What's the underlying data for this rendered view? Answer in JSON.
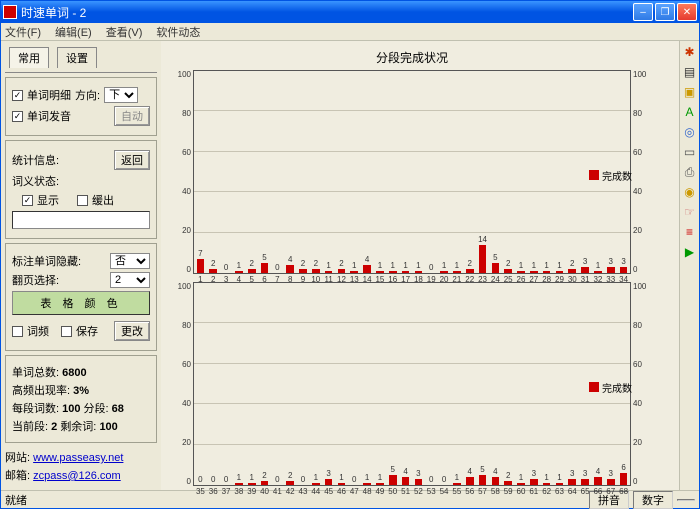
{
  "window": {
    "title": "时速单词  -  2"
  },
  "menu": {
    "file": "文件(F)",
    "edit": "编辑(E)",
    "view": "查看(V)",
    "soft": "软件动态"
  },
  "tabs": {
    "common": "常用",
    "settings": "设置"
  },
  "panel": {
    "wordDetail": "单词明细",
    "direction": "方向:",
    "directionVal": "下",
    "wordSound": "单词发音",
    "autoBtn": "自动",
    "statInfo": "统计信息:",
    "backBtn": "返回",
    "meaningState": "词义状态:",
    "show": "显示",
    "delay": "缓出",
    "markHide": "标注单词隐藏:",
    "markHideVal": "否",
    "pageSel": "翻页选择:",
    "pageSelVal": "2",
    "tableColorBtn": "表 格 颜 色",
    "wordFreq": "词频",
    "save": "保存",
    "changeBtn": "更改",
    "totalLabel": "单词总数:",
    "totalVal": "6800",
    "freqLabel": "高频出现率:",
    "freqVal": "3%",
    "perSegLabel": "每段词数:",
    "perSegVal": "100",
    "segLabel": "分段:",
    "segVal": "68",
    "curSegLabel": "当前段:",
    "curSegVal": "2",
    "remainLabel": "剩余词:",
    "remainVal": "100",
    "siteLabel": "网站:",
    "siteVal": "www.passeasy.net",
    "mailLabel": "邮箱:",
    "mailVal": "zcpass@126.com"
  },
  "charts": {
    "title": "分段完成状况",
    "legend": "完成数",
    "ymax": 100,
    "ystep": 20,
    "bar_color": "#cc0000",
    "grid_color": "#c8c4b4",
    "bg": "#f0ede0",
    "top": {
      "xstart": 1,
      "values": [
        7,
        2,
        0,
        1,
        2,
        5,
        0,
        4,
        2,
        2,
        1,
        2,
        1,
        4,
        1,
        1,
        1,
        1,
        0,
        1,
        1,
        2,
        14,
        5,
        2,
        1,
        1,
        1,
        1,
        2,
        3,
        1,
        3,
        3
      ]
    },
    "bottom": {
      "xstart": 35,
      "values": [
        0,
        0,
        0,
        1,
        1,
        2,
        0,
        2,
        0,
        1,
        3,
        1,
        0,
        1,
        1,
        5,
        4,
        3,
        0,
        0,
        1,
        4,
        5,
        4,
        2,
        1,
        3,
        1,
        1,
        3,
        3,
        4,
        3,
        6
      ]
    }
  },
  "status": {
    "ready": "就绪",
    "pinyin": "拼音",
    "num": "数字"
  },
  "toolbar": {
    "icons": [
      "fire",
      "save",
      "folder",
      "text",
      "target",
      "book",
      "print",
      "eye",
      "hand",
      "bars",
      "play"
    ],
    "colors": [
      "#cc3300",
      "#333",
      "#c90",
      "#090",
      "#36c",
      "#555",
      "#555",
      "#c90",
      "#c66",
      "#c00",
      "#090"
    ]
  }
}
